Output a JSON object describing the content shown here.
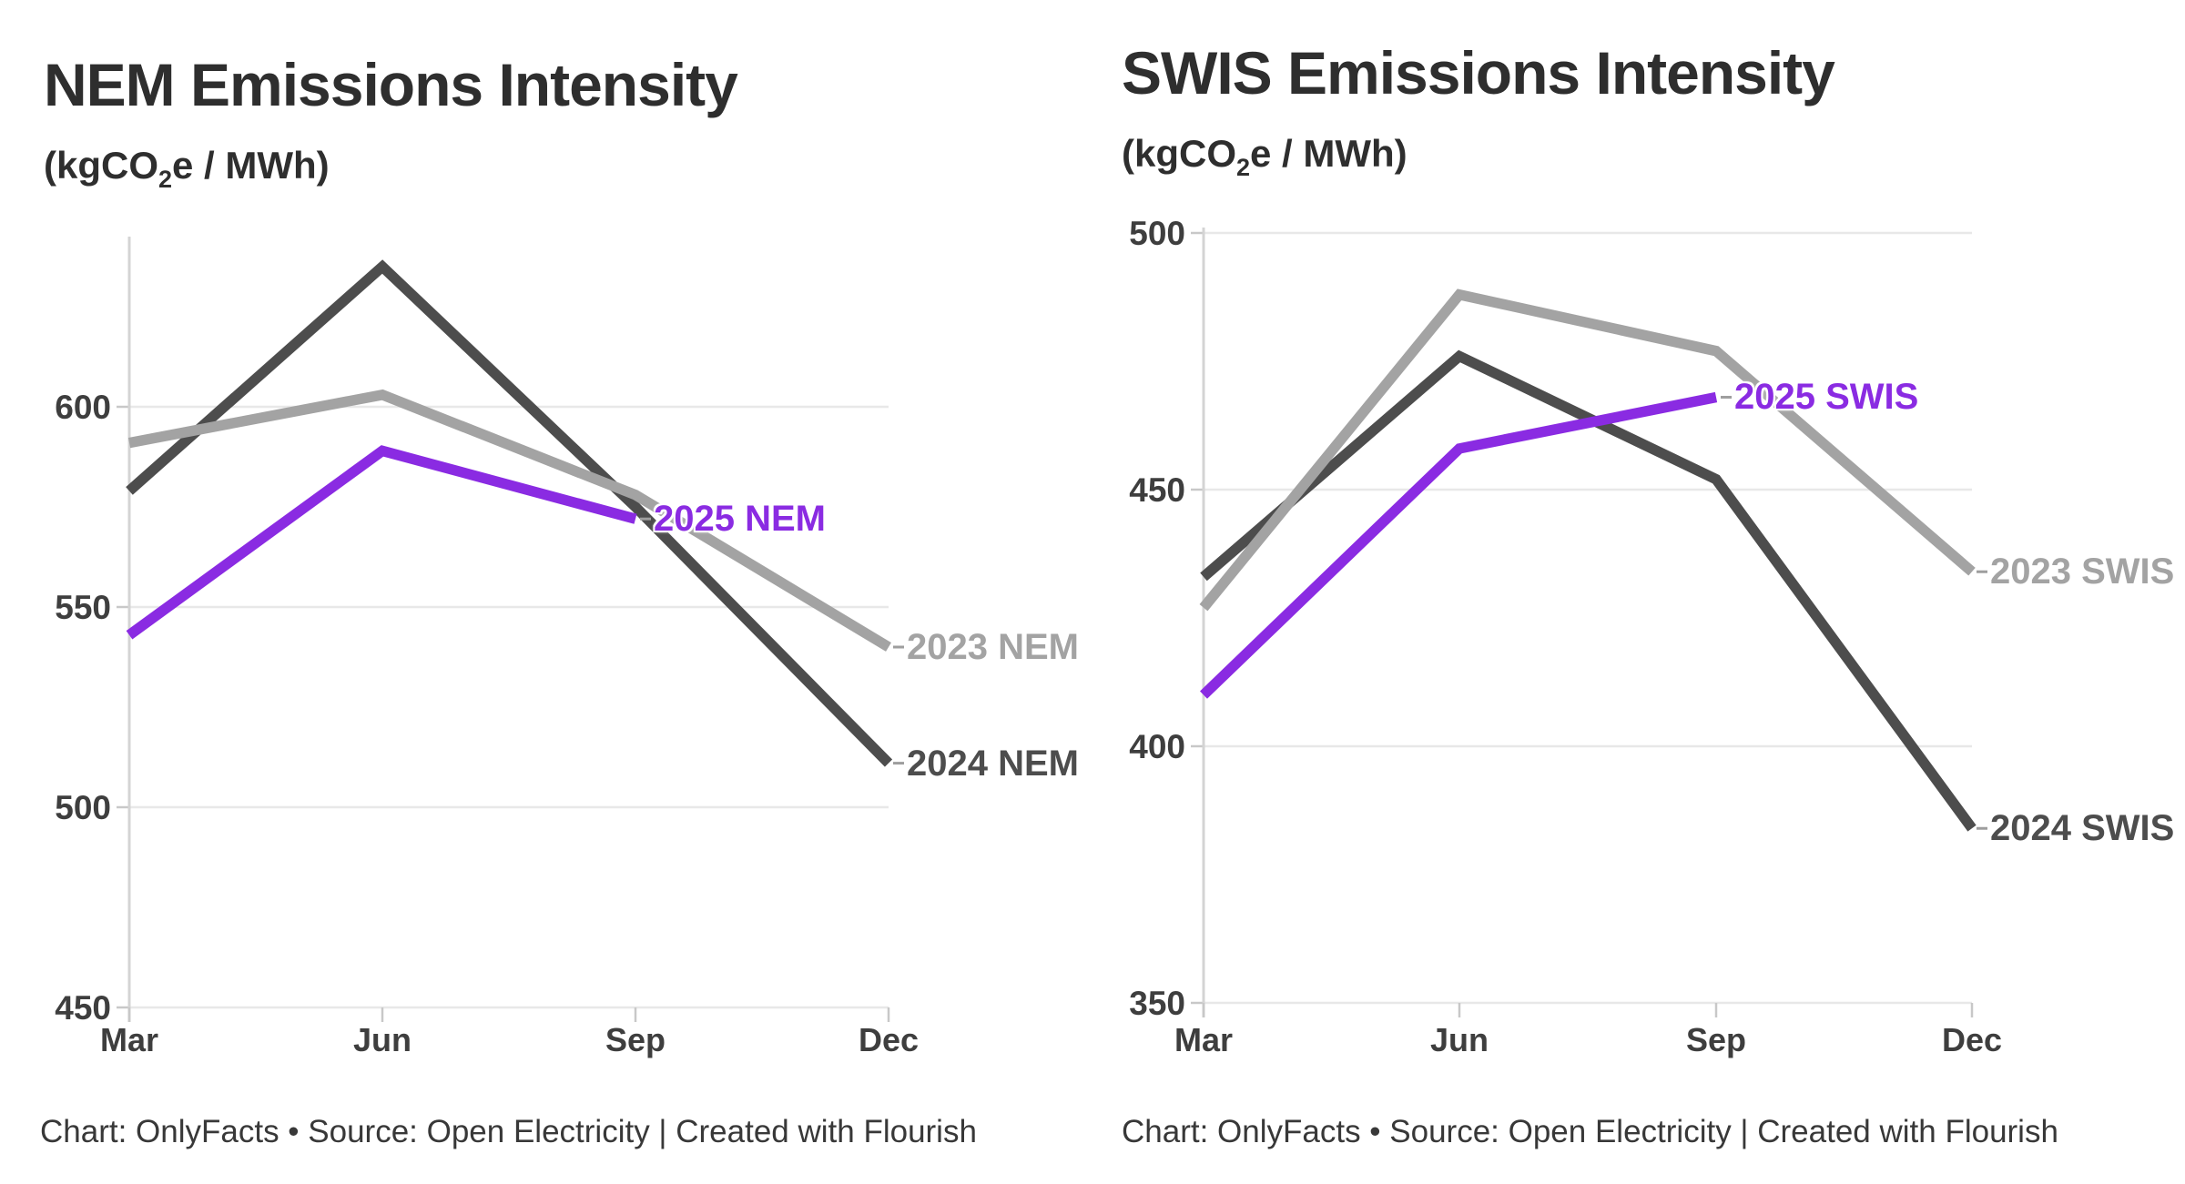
{
  "chart_data": [
    {
      "id": "nem",
      "type": "line",
      "title": "NEM Emissions Intensity",
      "subtitle": "(kgCO2e / MWh)",
      "subtitle_parts": {
        "pre": "(kgCO",
        "sub": "2",
        "post": "e / MWh)"
      },
      "categories": [
        "Mar",
        "Jun",
        "Sep",
        "Dec"
      ],
      "yticks": [
        600,
        550,
        500,
        450
      ],
      "ylim": [
        450,
        645
      ],
      "grid": "horizontal",
      "legend_position": "direct-labels-on-lines",
      "series": [
        {
          "name": "2024 NEM",
          "color": "#4d4d4d",
          "values": [
            579,
            635,
            575,
            511
          ]
        },
        {
          "name": "2023 NEM",
          "color": "#a3a3a3",
          "values": [
            591,
            603,
            578,
            540
          ]
        },
        {
          "name": "2025 NEM",
          "color": "#8a2be2",
          "values": [
            543,
            589,
            572
          ]
        }
      ],
      "footer": "Chart: OnlyFacts • Source: Open Electricity | Created with Flourish"
    },
    {
      "id": "swis",
      "type": "line",
      "title": "SWIS Emissions Intensity",
      "subtitle": "(kgCO2e / MWh)",
      "subtitle_parts": {
        "pre": "(kgCO",
        "sub": "2",
        "post": "e / MWh)"
      },
      "categories": [
        "Mar",
        "Jun",
        "Sep",
        "Dec"
      ],
      "yticks": [
        500,
        450,
        400,
        350
      ],
      "ylim": [
        350,
        501
      ],
      "grid": "horizontal",
      "legend_position": "direct-labels-on-lines",
      "series": [
        {
          "name": "2024 SWIS",
          "color": "#4d4d4d",
          "values": [
            433,
            476,
            452,
            384
          ]
        },
        {
          "name": "2023 SWIS",
          "color": "#a3a3a3",
          "values": [
            427,
            488,
            477,
            434
          ]
        },
        {
          "name": "2025 SWIS",
          "color": "#8a2be2",
          "values": [
            410,
            458,
            468
          ]
        }
      ],
      "footer": "Chart: OnlyFacts • Source: Open Electricity | Created with Flourish"
    }
  ],
  "colors": {
    "accent_purple": "#8a2be2",
    "dark_gray_line": "#4d4d4d",
    "light_gray_line": "#a3a3a3",
    "gridline": "#e8e8e8",
    "axis_line": "#d4d4d4",
    "tick_mark": "#c8c8c8",
    "end_tick": "#9e9e9e",
    "title_text": "#2e2e2e",
    "tick_label_text": "#3e3e3e",
    "footer_text": "#383838"
  }
}
